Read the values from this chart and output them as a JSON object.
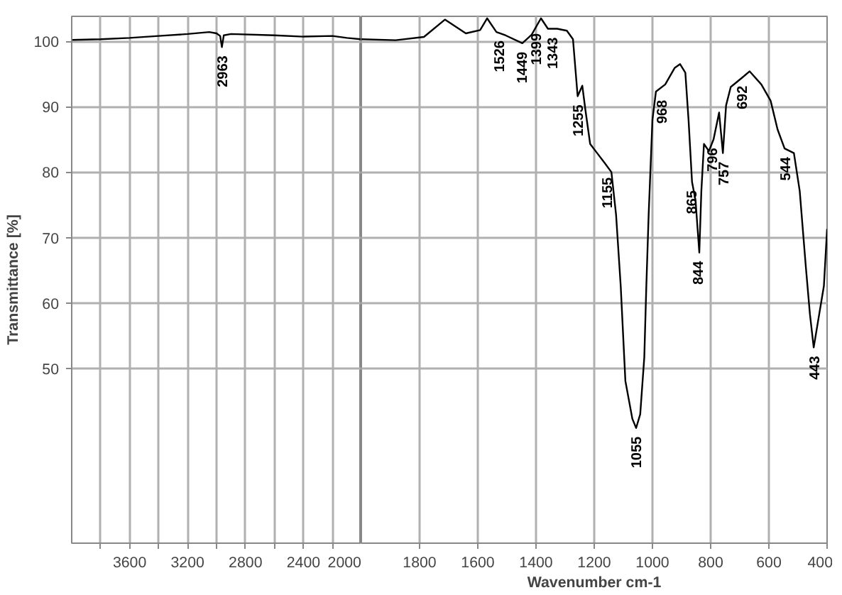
{
  "chart_data": [
    {
      "type": "line",
      "ylabel": "Transmittance [%]",
      "xlim": [
        4000,
        2000
      ],
      "ylim": [
        23.3,
        103.8
      ],
      "xticks": [
        {
          "value": 3800,
          "label": null
        },
        3600,
        {
          "value": 3400,
          "label": null
        },
        3200,
        {
          "value": 3000,
          "label": null
        },
        2800,
        {
          "value": 2600,
          "label": null
        },
        2400,
        {
          "value": 2200,
          "label": null
        },
        2000
      ],
      "yticks": [
        50,
        60,
        70,
        80,
        90,
        100
      ],
      "grid": true,
      "series": [
        {
          "color": "#000000",
          "x": [
            4000,
            3800,
            3600,
            3400,
            3200,
            3050,
            3000,
            2975,
            2963,
            2950,
            2900,
            2600,
            2400,
            2200,
            2100,
            2000
          ],
          "values": [
            100.2,
            100.3,
            100.5,
            100.8,
            101.1,
            101.4,
            101.2,
            100.8,
            99.1,
            100.9,
            101.1,
            100.9,
            100.7,
            100.8,
            100.5,
            100.3
          ]
        }
      ],
      "annotations": [
        {
          "text": "2963",
          "x": 2963,
          "y": 99.1
        }
      ]
    },
    {
      "type": "line",
      "xlabel": "Wavenumber cm-1",
      "xlim": [
        2000,
        400
      ],
      "ylim": [
        23.3,
        103.8
      ],
      "xticks": [
        1800,
        1600,
        1400,
        1200,
        1000,
        800,
        600,
        400
      ],
      "yticks": [
        {
          "value": 50,
          "label": null
        },
        {
          "value": 60,
          "label": null
        },
        {
          "value": 70,
          "label": null
        },
        {
          "value": 80,
          "label": null
        },
        {
          "value": 90,
          "label": null
        },
        {
          "value": 100,
          "label": null
        }
      ],
      "grid": true,
      "tick_labels": "x",
      "series": [
        {
          "color": "#000000",
          "x": [
            2000,
            1882,
            1785,
            1713,
            1641,
            1592,
            1568,
            1536,
            1505,
            1447,
            1415,
            1383,
            1359,
            1327,
            1294,
            1273,
            1257,
            1241,
            1230,
            1214,
            1190,
            1166,
            1141,
            1125,
            1109,
            1093,
            1069,
            1056,
            1042,
            1028,
            1021,
            1013,
            1000,
            988,
            956,
            924,
            905,
            887,
            876,
            864,
            852,
            839,
            832,
            823,
            806,
            790,
            771,
            758,
            747,
            731,
            690,
            666,
            626,
            594,
            570,
            546,
            514,
            494,
            473,
            459,
            446,
            427,
            411,
            400
          ],
          "values": [
            100.3,
            100.15,
            100.65,
            103.3,
            101.2,
            101.7,
            103.5,
            101.4,
            100.9,
            99.7,
            101.0,
            103.5,
            101.9,
            101.9,
            101.6,
            100.3,
            91.6,
            93.2,
            89.4,
            84.3,
            82.9,
            81.5,
            80.0,
            73.5,
            62.6,
            48.1,
            42.3,
            40.9,
            43.0,
            51.7,
            62.6,
            73.5,
            88.0,
            92.3,
            93.4,
            95.9,
            96.5,
            95.2,
            88.0,
            78.5,
            75.7,
            67.7,
            77.1,
            84.3,
            83.2,
            85.0,
            89.1,
            82.9,
            90.2,
            93.0,
            94.5,
            95.4,
            93.4,
            90.9,
            86.5,
            83.6,
            82.9,
            77.1,
            65.5,
            58.3,
            53.2,
            58.3,
            62.6,
            71.3
          ]
        }
      ],
      "annotations": [
        {
          "text": "1526",
          "x": 1526,
          "y": 101.4
        },
        {
          "text": "1449",
          "x": 1449,
          "y": 99.7
        },
        {
          "text": "1399",
          "x": 1399,
          "y": 102.5
        },
        {
          "text": "1343",
          "x": 1343,
          "y": 101.9
        },
        {
          "text": "1255",
          "x": 1255,
          "y": 91.6
        },
        {
          "text": "1155",
          "x": 1155,
          "y": 80.5
        },
        {
          "text": "1055",
          "x": 1055,
          "y": 40.9
        },
        {
          "text": "968",
          "x": 968,
          "y": 92.3
        },
        {
          "text": "865",
          "x": 865,
          "y": 78.5
        },
        {
          "text": "844",
          "x": 844,
          "y": 67.7
        },
        {
          "text": "796",
          "x": 796,
          "y": 85.0
        },
        {
          "text": "757",
          "x": 757,
          "y": 82.9
        },
        {
          "text": "692",
          "x": 692,
          "y": 94.5
        },
        {
          "text": "544",
          "x": 544,
          "y": 83.6
        },
        {
          "text": "443",
          "x": 443,
          "y": 53.2
        }
      ]
    }
  ]
}
